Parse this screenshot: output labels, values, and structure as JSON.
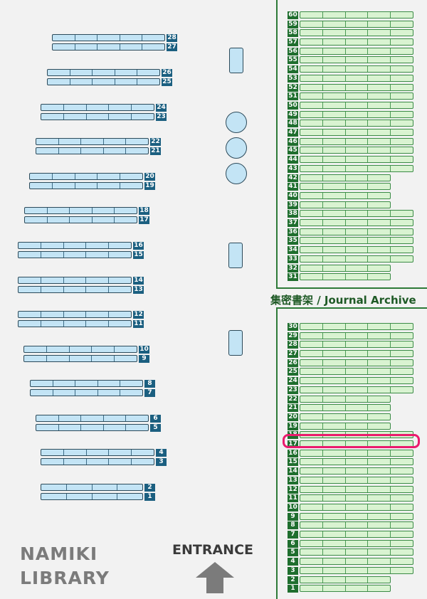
{
  "library_name": [
    "NAMIKI",
    "LIBRARY"
  ],
  "entrance_label": "ENTRANCE",
  "archive_title": "集密書架 / Journal Archive",
  "colors": {
    "general_shelf": "#c3e4f5",
    "general_label": "#1b5f80",
    "archive_shelf": "#d9f3d1",
    "archive_label": "#1f6e2e",
    "highlight": "#ea1b6d"
  },
  "highlighted_shelf": "archive-17",
  "general_shelves": [
    {
      "labels": [
        "28",
        "27"
      ],
      "segments": 5
    },
    {
      "labels": [
        "26",
        "25"
      ],
      "segments": 5
    },
    {
      "labels": [
        "24",
        "23"
      ],
      "segments": 5
    },
    {
      "labels": [
        "22",
        "21"
      ],
      "segments": 5
    },
    {
      "labels": [
        "20",
        "19"
      ],
      "segments": 5
    },
    {
      "labels": [
        "18",
        "17"
      ],
      "segments": 5
    },
    {
      "labels": [
        "16",
        "15"
      ],
      "segments": 5
    },
    {
      "labels": [
        "14",
        "13"
      ],
      "segments": 5
    },
    {
      "labels": [
        "12",
        "11"
      ],
      "segments": 5
    },
    {
      "labels": [
        "10",
        "9"
      ],
      "segments": 5
    },
    {
      "labels": [
        "8",
        "7"
      ],
      "segments": 5
    },
    {
      "labels": [
        "6",
        "5"
      ],
      "segments": 5
    },
    {
      "labels": [
        "4",
        "3"
      ],
      "segments": 5
    },
    {
      "labels": [
        "2",
        "1"
      ],
      "segments": 4
    }
  ],
  "archive_upper": [
    {
      "labels": [
        "60",
        "59"
      ],
      "segments": 5
    },
    {
      "labels": [
        "58",
        "57"
      ],
      "segments": 5
    },
    {
      "labels": [
        "56",
        "55"
      ],
      "segments": 5
    },
    {
      "labels": [
        "54",
        "53"
      ],
      "segments": 5
    },
    {
      "labels": [
        "52",
        "51"
      ],
      "segments": 5
    },
    {
      "labels": [
        "50",
        "49"
      ],
      "segments": 5
    },
    {
      "labels": [
        "48",
        "47"
      ],
      "segments": 5
    },
    {
      "labels": [
        "46",
        "45"
      ],
      "segments": 5
    },
    {
      "labels": [
        "44",
        "43"
      ],
      "segments": 5
    },
    {
      "labels": [
        "42",
        "41"
      ],
      "segments": 4
    },
    {
      "labels": [
        "40",
        "39"
      ],
      "segments": 4
    },
    {
      "labels": [
        "38",
        "37"
      ],
      "segments": 5
    },
    {
      "labels": [
        "36",
        "35"
      ],
      "segments": 5
    },
    {
      "labels": [
        "34",
        "33"
      ],
      "segments": 5
    },
    {
      "labels": [
        "32",
        "31"
      ],
      "segments": 4
    }
  ],
  "archive_lower": [
    {
      "labels": [
        "30",
        "29"
      ],
      "segments": 5
    },
    {
      "labels": [
        "28",
        "27"
      ],
      "segments": 5
    },
    {
      "labels": [
        "26",
        "25"
      ],
      "segments": 5
    },
    {
      "labels": [
        "24",
        "23"
      ],
      "segments": 5
    },
    {
      "labels": [
        "22",
        "21"
      ],
      "segments": 4
    },
    {
      "labels": [
        "20",
        "19"
      ],
      "segments": 4
    },
    {
      "labels": [
        "18",
        "17"
      ],
      "segments": 5
    },
    {
      "labels": [
        "16",
        "15"
      ],
      "segments": 5
    },
    {
      "labels": [
        "14",
        "13"
      ],
      "segments": 5
    },
    {
      "labels": [
        "12",
        "11"
      ],
      "segments": 5
    },
    {
      "labels": [
        "10",
        "9"
      ],
      "segments": 5
    },
    {
      "labels": [
        "8",
        "7"
      ],
      "segments": 5
    },
    {
      "labels": [
        "6",
        "5"
      ],
      "segments": 5
    },
    {
      "labels": [
        "4",
        "3"
      ],
      "segments": 5
    },
    {
      "labels": [
        "2",
        "1"
      ],
      "segments": 4
    }
  ]
}
